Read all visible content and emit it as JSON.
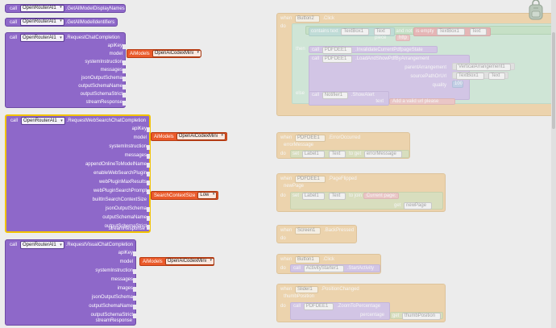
{
  "blocks": {
    "getAllModelDisplayNames": {
      "kw": "call",
      "component": "OpenRouterAI1",
      "method": ".GetAllModelDisplayNames"
    },
    "getAllModelIdentifiers": {
      "kw": "call",
      "component": "OpenRouterAI1",
      "method": ".GetAllModelIdentifiers"
    },
    "requestChat": {
      "kw": "call",
      "component": "OpenRouterAI1",
      "method": ".RequestChatCompletion",
      "params": [
        "apiKey",
        "model",
        "systemInstruction",
        "messages",
        "jsonOutputSchema",
        "outputSchemaName",
        "outputSchemaStrict",
        "streamResponse"
      ]
    },
    "requestWebSearch": {
      "kw": "call",
      "component": "OpenRouterAI1",
      "method": ".RequestWebSearchChatCompletion",
      "params": [
        "apiKey",
        "model",
        "systemInstruction",
        "messages",
        "appendOnlineToModelName",
        "enableWebSearchPlugin",
        "webPluginMaxResults",
        "webPluginSearchPrompt",
        "builtInSearchContextSize",
        "jsonOutputSchema",
        "outputSchemaName",
        "outputSchemaStrict",
        "streamResponse"
      ]
    },
    "requestVisual": {
      "kw": "call",
      "component": "OpenRouterAI1",
      "method": ".RequestVisualChatCompletion",
      "params": [
        "apiKey",
        "model",
        "systemInstruction",
        "messages",
        "images",
        "jsonOutputSchema",
        "outputSchemaName",
        "outputSchemaStrict",
        "streamResponse"
      ]
    }
  },
  "aiModels": {
    "label": "AiModels",
    "value": "OpenAiCodexMini"
  },
  "searchContext": {
    "label": "SearchContextSize",
    "value": "Low"
  },
  "faded": {
    "ev1": {
      "when": "when",
      "comp": "Button2",
      "evt": ".Click",
      "do": "do",
      "ifRow": [
        "contains",
        "text",
        "TextBox1",
        "Text",
        "and",
        "not",
        "is empty",
        "TextBox1",
        "Text"
      ],
      "piece": "piece",
      "http": "http",
      "then": "then",
      "call1": "call",
      "c1comp": "PDFDEE1",
      "c1m": ".InvalidateCurrentPdfpageState",
      "call2": "call",
      "c2comp": "PDFDEE1",
      "c2m": ".LoadAndShowPdfByArrangement",
      "pa": "parentArrangement",
      "paV": "VerticalArrangement1",
      "sp": "sourcePathOrUrl",
      "spC": "TextBox1",
      "spT": "Text",
      "q": "quality",
      "qV": "100",
      "else": "else",
      "call3": "call",
      "c3comp": "Notifier1",
      "c3m": ".ShowAlert",
      "txt": "text",
      "txtV": "Add a valid url please"
    },
    "ev2": {
      "when": "when",
      "comp": "PDFDEE1",
      "evt": ".ErrorOccurred",
      "param": "errorMessage",
      "do": "do",
      "set": "set",
      "sc": "Label1",
      "st": "Text",
      "to": "to",
      "get": "get",
      "gv": "errorMessage"
    },
    "ev3": {
      "when": "when",
      "comp": "PDFDEE1",
      "evt": ".PageFlipped",
      "param": "newPage",
      "do": "do",
      "set": "set",
      "sc": "Label1",
      "st": "Text",
      "to": "to",
      "join": "join",
      "j1": "Current page: ",
      "get": "get",
      "gv": "newPage"
    },
    "ev4": {
      "when": "when",
      "comp": "Screen1",
      "evt": ".BackPressed",
      "do": "do"
    },
    "ev5": {
      "when": "when",
      "comp": "Button1",
      "evt": ".Click",
      "do": "do",
      "call": "call",
      "cc": "ActivityStarter1",
      "cm": ".StartActivity"
    },
    "ev6": {
      "when": "when",
      "comp": "Slider1",
      "evt": ".PositionChanged",
      "param": "thumbPosition",
      "do": "do",
      "call": "call",
      "cc": "PDFDEE1",
      "cm": ".ZoomToPercentage",
      "pct": "percentage",
      "get": "get",
      "gv": "thumbPosition"
    }
  }
}
